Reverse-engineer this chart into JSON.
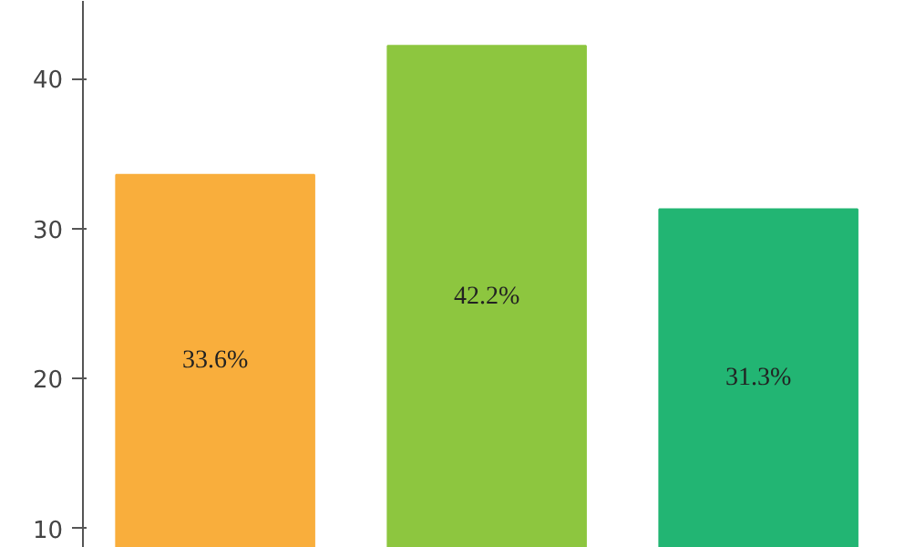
{
  "chart_data": {
    "type": "bar",
    "categories": [
      null,
      null,
      null
    ],
    "values": [
      33.6,
      42.2,
      31.3
    ],
    "colors": [
      "#f9ae3c",
      "#8dc63f",
      "#22b573"
    ],
    "value_labels": [
      "33.6%",
      "42.2%",
      "31.3%"
    ],
    "ylim": [
      8.7,
      45.2
    ],
    "yticks": [
      10,
      20,
      30,
      40
    ],
    "grid": false,
    "tick_labels": "y"
  }
}
